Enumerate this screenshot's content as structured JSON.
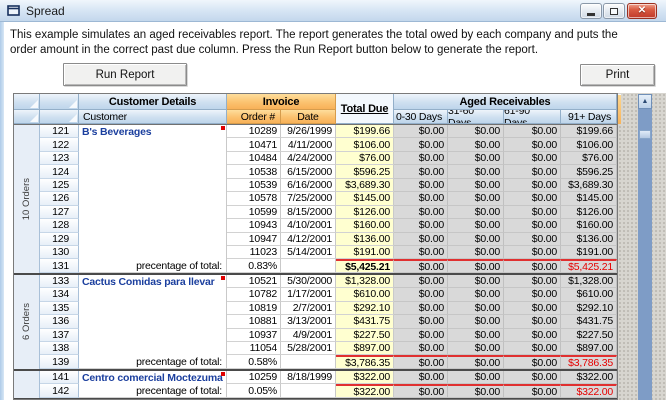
{
  "window": {
    "title": "Spread"
  },
  "icons": {
    "close": "✕",
    "scroll_up": "▲"
  },
  "description": {
    "line1": "This example simulates an aged receivables report.  The report generates the total owed by each company and puts the",
    "line2": "order amount in the correct past due column. Press the Run Report button below to generate the report."
  },
  "buttons": {
    "run_report": "Run Report",
    "print": "Print"
  },
  "colors": {
    "invoice_header_orange": "#f9b75e",
    "header_blue": "#c9dcef",
    "total_due_fill": "#ffffd0",
    "aged_fill": "#d9d9d9",
    "negative_red": "#e60000",
    "customer_name_blue": "#1b3f9e"
  },
  "grid": {
    "headers": {
      "customer_details": "Customer Details",
      "invoice": "Invoice",
      "total_due": "Total Due",
      "aged_receivables": "Aged Receivables",
      "customer": "Customer",
      "order_no": "Order #",
      "date": "Date",
      "aged_cols": [
        "0-30 Days",
        "31-60 Days",
        "61-90 Days",
        "91+ Days"
      ]
    },
    "groups": [
      {
        "order_count_label": "10 Orders",
        "customer": "B's Beverages",
        "rows": [
          {
            "row": "121",
            "order": "10289",
            "date": "9/26/1999",
            "total": "$199.66",
            "aged": [
              "$0.00",
              "$0.00",
              "$0.00",
              "$199.66"
            ]
          },
          {
            "row": "122",
            "order": "10471",
            "date": "4/11/2000",
            "total": "$106.00",
            "aged": [
              "$0.00",
              "$0.00",
              "$0.00",
              "$106.00"
            ]
          },
          {
            "row": "123",
            "order": "10484",
            "date": "4/24/2000",
            "total": "$76.00",
            "aged": [
              "$0.00",
              "$0.00",
              "$0.00",
              "$76.00"
            ]
          },
          {
            "row": "124",
            "order": "10538",
            "date": "6/15/2000",
            "total": "$596.25",
            "aged": [
              "$0.00",
              "$0.00",
              "$0.00",
              "$596.25"
            ]
          },
          {
            "row": "125",
            "order": "10539",
            "date": "6/16/2000",
            "total": "$3,689.30",
            "aged": [
              "$0.00",
              "$0.00",
              "$0.00",
              "$3,689.30"
            ]
          },
          {
            "row": "126",
            "order": "10578",
            "date": "7/25/2000",
            "total": "$145.00",
            "aged": [
              "$0.00",
              "$0.00",
              "$0.00",
              "$145.00"
            ]
          },
          {
            "row": "127",
            "order": "10599",
            "date": "8/15/2000",
            "total": "$126.00",
            "aged": [
              "$0.00",
              "$0.00",
              "$0.00",
              "$126.00"
            ]
          },
          {
            "row": "128",
            "order": "10943",
            "date": "4/10/2001",
            "total": "$160.00",
            "aged": [
              "$0.00",
              "$0.00",
              "$0.00",
              "$160.00"
            ]
          },
          {
            "row": "129",
            "order": "10947",
            "date": "4/12/2001",
            "total": "$136.00",
            "aged": [
              "$0.00",
              "$0.00",
              "$0.00",
              "$136.00"
            ]
          },
          {
            "row": "130",
            "order": "11023",
            "date": "5/14/2001",
            "total": "$191.00",
            "aged": [
              "$0.00",
              "$0.00",
              "$0.00",
              "$191.00"
            ]
          }
        ],
        "summary": {
          "row": "131",
          "label": "precentage of total:",
          "percent": "0.83%",
          "total": "$5,425.21",
          "total_bold": true,
          "aged": [
            "$0.00",
            "$0.00",
            "$0.00",
            "$5,425.21"
          ]
        }
      },
      {
        "order_count_label": "6 Orders",
        "customer": "Cactus Comidas para llevar",
        "rows": [
          {
            "row": "133",
            "order": "10521",
            "date": "5/30/2000",
            "total": "$1,328.00",
            "aged": [
              "$0.00",
              "$0.00",
              "$0.00",
              "$1,328.00"
            ]
          },
          {
            "row": "134",
            "order": "10782",
            "date": "1/17/2001",
            "total": "$610.00",
            "aged": [
              "$0.00",
              "$0.00",
              "$0.00",
              "$610.00"
            ]
          },
          {
            "row": "135",
            "order": "10819",
            "date": "2/7/2001",
            "total": "$292.10",
            "aged": [
              "$0.00",
              "$0.00",
              "$0.00",
              "$292.10"
            ]
          },
          {
            "row": "136",
            "order": "10881",
            "date": "3/13/2001",
            "total": "$431.75",
            "aged": [
              "$0.00",
              "$0.00",
              "$0.00",
              "$431.75"
            ]
          },
          {
            "row": "137",
            "order": "10937",
            "date": "4/9/2001",
            "total": "$227.50",
            "aged": [
              "$0.00",
              "$0.00",
              "$0.00",
              "$227.50"
            ]
          },
          {
            "row": "138",
            "order": "11054",
            "date": "5/28/2001",
            "total": "$897.00",
            "aged": [
              "$0.00",
              "$0.00",
              "$0.00",
              "$897.00"
            ]
          }
        ],
        "summary": {
          "row": "139",
          "label": "precentage of total:",
          "percent": "0.58%",
          "total": "$3,786.35",
          "total_bold": false,
          "aged": [
            "$0.00",
            "$0.00",
            "$0.00",
            "$3,786.35"
          ]
        }
      },
      {
        "order_count_label": "",
        "customer": "Centro comercial Moctezuma",
        "rows": [
          {
            "row": "141",
            "order": "10259",
            "date": "8/18/1999",
            "total": "$322.00",
            "aged": [
              "$0.00",
              "$0.00",
              "$0.00",
              "$322.00"
            ]
          }
        ],
        "summary": {
          "row": "142",
          "label": "precentage of total:",
          "percent": "0.05%",
          "total": "$322.00",
          "total_bold": false,
          "aged": [
            "$0.00",
            "$0.00",
            "$0.00",
            "$322.00"
          ]
        }
      }
    ]
  }
}
